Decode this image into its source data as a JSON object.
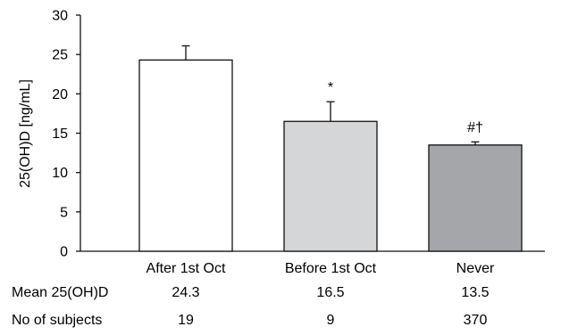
{
  "chart_data": {
    "type": "bar",
    "title": "",
    "xlabel": "",
    "ylabel": "25(OH)D [ng/mL]",
    "ylim": [
      0,
      30
    ],
    "yticks": [
      0,
      5,
      10,
      15,
      20,
      25,
      30
    ],
    "grid": false,
    "categories": [
      "After 1st Oct",
      "Before 1st Oct",
      "Never"
    ],
    "values": [
      24.3,
      16.5,
      13.5
    ],
    "error_upper": [
      1.8,
      2.5,
      0.4
    ],
    "bar_colors": [
      "#ffffff",
      "#d4d6d8",
      "#a4a6a9"
    ],
    "annotations": [
      "",
      "*",
      "#†"
    ],
    "table_rows": [
      {
        "label": "Mean 25(OH)D",
        "values": [
          "24.3",
          "16.5",
          "13.5"
        ]
      },
      {
        "label": "No of subjects",
        "values": [
          "19",
          "9",
          "370"
        ]
      }
    ]
  }
}
